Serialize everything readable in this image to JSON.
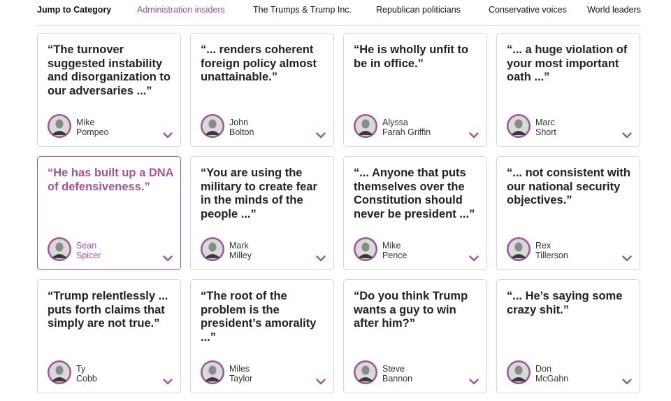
{
  "nav": {
    "jump_label": "Jump to Category",
    "categories": [
      {
        "label": "Administration insiders",
        "active": true
      },
      {
        "label": "The Trumps & Trump Inc.",
        "active": false
      },
      {
        "label": "Republican politicians",
        "active": false
      },
      {
        "label": "Conservative voices",
        "active": false
      },
      {
        "label": "World leaders",
        "active": false
      }
    ]
  },
  "colors": {
    "accent": "#a0569c",
    "text": "#222222",
    "border": "#d4d4d4"
  },
  "cards": [
    {
      "quote": "“The turnover suggested instability and disorganization to our adversaries ...”",
      "first": "Mike",
      "last": "Pompeo",
      "selected": false,
      "chevron_icon": "chevron-down-icon"
    },
    {
      "quote": "“... renders coherent foreign policy almost unattainable.”",
      "first": "John",
      "last": "Bolton",
      "selected": false,
      "chevron_icon": "chevron-down-icon"
    },
    {
      "quote": "“He is wholly unfit to be in office.”",
      "first": "Alyssa",
      "last": "Farah Griffin",
      "selected": false,
      "chevron_icon": "chevron-down-icon"
    },
    {
      "quote": "“... a huge violation of your most important oath ...”",
      "first": "Marc",
      "last": "Short",
      "selected": false,
      "chevron_icon": "chevron-down-icon"
    },
    {
      "quote": "“He has built up a DNA of defensiveness.”",
      "first": "Sean",
      "last": "Spicer",
      "selected": true,
      "chevron_icon": "chevron-down-icon"
    },
    {
      "quote": "“You are using the military to create fear in the minds of the people ...”",
      "first": "Mark",
      "last": "Milley",
      "selected": false,
      "chevron_icon": "chevron-down-icon"
    },
    {
      "quote": "“... Anyone that puts themselves over the Constitution should never be president ...”",
      "first": "Mike",
      "last": "Pence",
      "selected": false,
      "chevron_icon": "chevron-down-icon"
    },
    {
      "quote": "“... not consistent with our national security objectives.”",
      "first": "Rex",
      "last": "Tillerson",
      "selected": false,
      "chevron_icon": "chevron-down-icon"
    },
    {
      "quote": "“Trump relentlessly ... puts forth claims that simply are not true.”",
      "first": "Ty",
      "last": "Cobb",
      "selected": false,
      "chevron_icon": "chevron-down-icon"
    },
    {
      "quote": "“The root of the problem is the president’s amorality ...”",
      "first": "Miles",
      "last": "Taylor",
      "selected": false,
      "chevron_icon": "chevron-down-icon"
    },
    {
      "quote": "“Do you think Trump wants a guy to win after him?”",
      "first": "Steve",
      "last": "Bannon",
      "selected": false,
      "chevron_icon": "chevron-down-icon"
    },
    {
      "quote": "“... He’s saying some crazy shit.”",
      "first": "Don",
      "last": "McGahn",
      "selected": false,
      "chevron_icon": "chevron-down-icon"
    }
  ]
}
